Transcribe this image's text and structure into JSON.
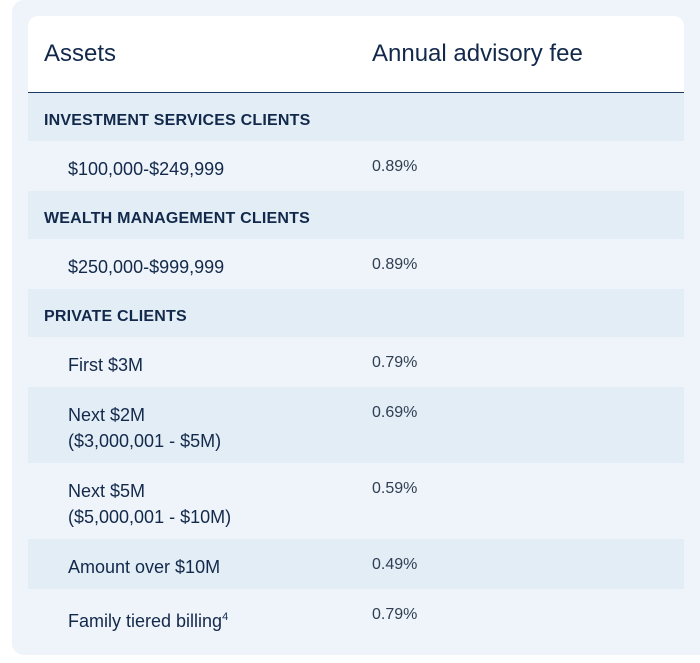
{
  "table": {
    "headers": {
      "assets": "Assets",
      "fee": "Annual advisory fee"
    },
    "sections": [
      {
        "title": "INVESTMENT SERVICES CLIENTS",
        "rows": [
          {
            "lines": [
              "$100,000-$249,999"
            ],
            "fee": "0.89%"
          }
        ]
      },
      {
        "title": "WEALTH MANAGEMENT CLIENTS",
        "rows": [
          {
            "lines": [
              "$250,000-$999,999"
            ],
            "fee": "0.89%"
          }
        ]
      },
      {
        "title": "PRIVATE CLIENTS",
        "rows": [
          {
            "lines": [
              "First $3M"
            ],
            "fee": "0.79%"
          },
          {
            "lines": [
              "Next $2M",
              "($3,000,001 - $5M)"
            ],
            "fee": "0.69%"
          },
          {
            "lines": [
              "Next $5M",
              "($5,000,001 - $10M)"
            ],
            "fee": "0.59%"
          },
          {
            "lines": [
              "Amount over $10M"
            ],
            "fee": "0.49%"
          },
          {
            "lines": [
              "Family tiered billing"
            ],
            "sup": "4",
            "fee": "0.79%"
          }
        ]
      }
    ]
  }
}
